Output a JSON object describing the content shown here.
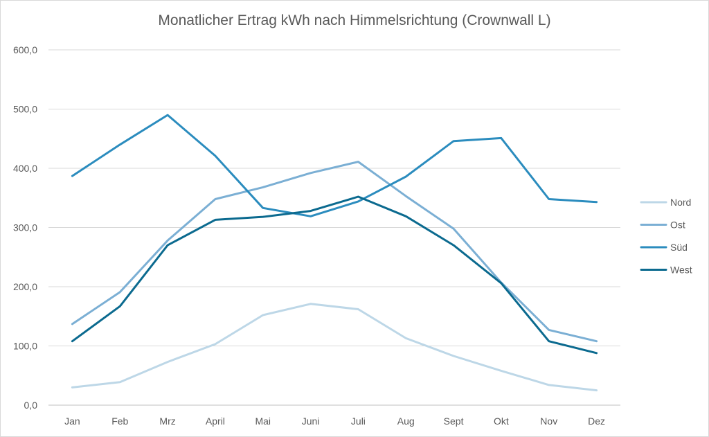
{
  "chart_data": {
    "type": "line",
    "title": "Monatlicher Ertrag kWh nach Himmelsrichtung (Crownwall L)",
    "xlabel": "",
    "ylabel": "",
    "ylim": [
      0,
      600
    ],
    "yticks": [
      "0,0",
      "100,0",
      "200,0",
      "300,0",
      "400,0",
      "500,0",
      "600,0"
    ],
    "ytick_values": [
      0,
      100,
      200,
      300,
      400,
      500,
      600
    ],
    "grid": true,
    "legend_position": "right",
    "categories": [
      "Jan",
      "Feb",
      "Mrz",
      "April",
      "Mai",
      "Juni",
      "Juli",
      "Aug",
      "Sept",
      "Okt",
      "Nov",
      "Dez"
    ],
    "series": [
      {
        "name": "Nord",
        "color": "#bdd7e7",
        "values": [
          30,
          39,
          73,
          103,
          152,
          171,
          162,
          113,
          83,
          58,
          34,
          25
        ]
      },
      {
        "name": "Ost",
        "color": "#7bafd4",
        "values": [
          137,
          191,
          278,
          348,
          368,
          392,
          411,
          353,
          298,
          207,
          127,
          108
        ]
      },
      {
        "name": "Süd",
        "color": "#2b8cbe",
        "values": [
          387,
          440,
          490,
          421,
          333,
          319,
          344,
          386,
          446,
          451,
          348,
          343
        ]
      },
      {
        "name": "West",
        "color": "#0b6a8f",
        "values": [
          108,
          167,
          270,
          313,
          318,
          328,
          352,
          319,
          270,
          206,
          108,
          88
        ]
      }
    ]
  }
}
